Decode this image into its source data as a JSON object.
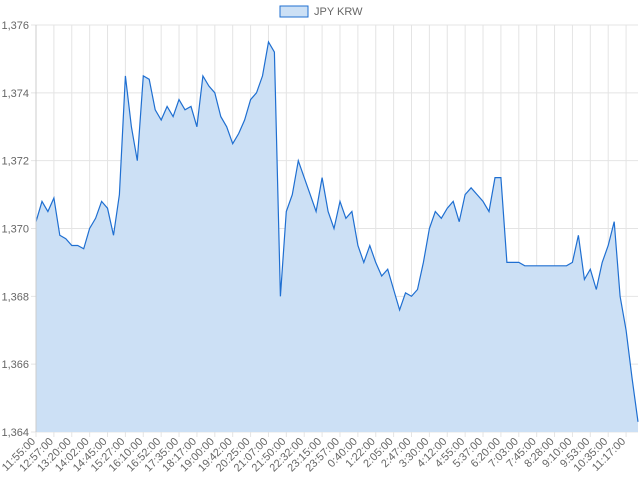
{
  "chart_data": {
    "type": "line",
    "categories": [
      "11:55:00",
      null,
      null,
      "12:57:00",
      null,
      null,
      "13:20:00",
      null,
      null,
      "14:02:00",
      null,
      null,
      "14:45:00",
      null,
      null,
      "15:27:00",
      null,
      null,
      "16:10:00",
      null,
      null,
      "16:52:00",
      null,
      null,
      "17:35:00",
      null,
      null,
      "18:17:00",
      null,
      null,
      "19:00:00",
      null,
      null,
      "19:42:00",
      null,
      null,
      "20:25:00",
      null,
      null,
      "21:07:00",
      null,
      null,
      "21:50:00",
      null,
      null,
      "22:32:00",
      null,
      null,
      "23:15:00",
      null,
      null,
      "23:57:00",
      null,
      null,
      "0:40:00",
      null,
      null,
      "1:22:00",
      null,
      null,
      "2:05:00",
      null,
      null,
      "2:47:00",
      null,
      null,
      "3:30:00",
      null,
      null,
      "4:12:00",
      null,
      null,
      "4:55:00",
      null,
      null,
      "5:37:00",
      null,
      null,
      "6:20:00",
      null,
      null,
      "7:03:00",
      null,
      null,
      "7:45:00",
      null,
      null,
      "8:28:00",
      null,
      null,
      "9:10:00",
      null,
      null,
      "9:53:00",
      null,
      null,
      "10:35:00",
      null,
      null,
      "11:17:00",
      null,
      null
    ],
    "series": [
      {
        "name": "JPY KRW",
        "color": "#1f6fd1",
        "fill": "#cce0f5",
        "values": [
          1370.2,
          1370.8,
          1370.5,
          1370.9,
          1369.8,
          1369.7,
          1369.5,
          1369.5,
          1369.4,
          1370.0,
          1370.3,
          1370.8,
          1370.6,
          1369.8,
          1371.0,
          1374.5,
          1373.0,
          1372.0,
          1374.5,
          1374.4,
          1373.5,
          1373.2,
          1373.6,
          1373.3,
          1373.8,
          1373.5,
          1373.6,
          1373.0,
          1374.5,
          1374.2,
          1374.0,
          1373.3,
          1373.0,
          1372.5,
          1372.8,
          1373.2,
          1373.8,
          1374.0,
          1374.5,
          1375.5,
          1375.2,
          1368.0,
          1370.5,
          1371.0,
          1372.0,
          1371.5,
          1371.0,
          1370.5,
          1371.5,
          1370.5,
          1370.0,
          1370.8,
          1370.3,
          1370.5,
          1369.5,
          1369.0,
          1369.5,
          1369.0,
          1368.6,
          1368.8,
          1368.2,
          1367.6,
          1368.1,
          1368.0,
          1368.2,
          1369.0,
          1370.0,
          1370.5,
          1370.3,
          1370.6,
          1370.8,
          1370.2,
          1371.0,
          1371.2,
          1371.0,
          1370.8,
          1370.5,
          1371.5,
          1371.5,
          1369.0,
          1369.0,
          1369.0,
          1368.9,
          1368.9,
          1368.9,
          1368.9,
          1368.9,
          1368.9,
          1368.9,
          1368.9,
          1369.0,
          1369.8,
          1368.5,
          1368.8,
          1368.2,
          1369.0,
          1369.5,
          1370.2,
          1368.0,
          1367.0,
          1365.6,
          1364.3
        ]
      }
    ],
    "ylim": [
      1364,
      1376
    ],
    "yticks": [
      {
        "value": 1364,
        "label": "1,364"
      },
      {
        "value": 1366,
        "label": "1,366"
      },
      {
        "value": 1368,
        "label": "1,368"
      },
      {
        "value": 1370,
        "label": "1,370"
      },
      {
        "value": 1372,
        "label": "1,372"
      },
      {
        "value": 1374,
        "label": "1,374"
      },
      {
        "value": 1376,
        "label": "1,376"
      }
    ],
    "grid": true,
    "legend": "top"
  }
}
